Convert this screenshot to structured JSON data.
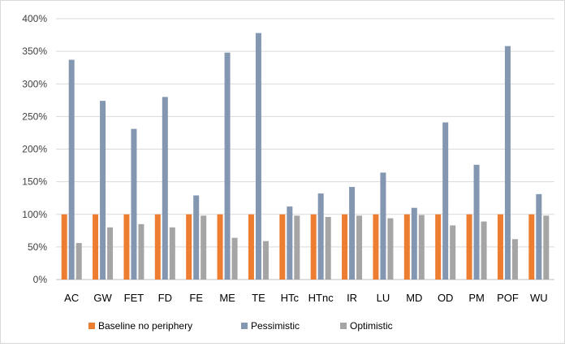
{
  "chart_data": {
    "type": "bar",
    "title": "",
    "xlabel": "",
    "ylabel": "",
    "ylim": [
      0,
      400
    ],
    "y_ticks": [
      "0%",
      "50%",
      "100%",
      "150%",
      "200%",
      "250%",
      "300%",
      "350%",
      "400%"
    ],
    "y_tick_values": [
      0,
      50,
      100,
      150,
      200,
      250,
      300,
      350,
      400
    ],
    "grid": "horizontal",
    "legend_position": "bottom",
    "categories": [
      "AC",
      "GW",
      "FET",
      "FD",
      "FE",
      "ME",
      "TE",
      "HTc",
      "HTnc",
      "IR",
      "LU",
      "MD",
      "OD",
      "PM",
      "POF",
      "WU"
    ],
    "series": [
      {
        "name": "Baseline no periphery",
        "color": "#ed7d31",
        "values": [
          100,
          100,
          100,
          100,
          100,
          100,
          100,
          100,
          100,
          100,
          100,
          100,
          100,
          100,
          100,
          100
        ]
      },
      {
        "name": "Pessimistic",
        "color": "#8497b0",
        "values": [
          337,
          274,
          231,
          280,
          129,
          348,
          378,
          112,
          132,
          142,
          164,
          110,
          241,
          176,
          358,
          131
        ]
      },
      {
        "name": "Optimistic",
        "color": "#a5a5a5",
        "values": [
          56,
          80,
          85,
          80,
          98,
          64,
          59,
          98,
          96,
          98,
          94,
          99,
          83,
          89,
          62,
          98
        ]
      }
    ]
  }
}
